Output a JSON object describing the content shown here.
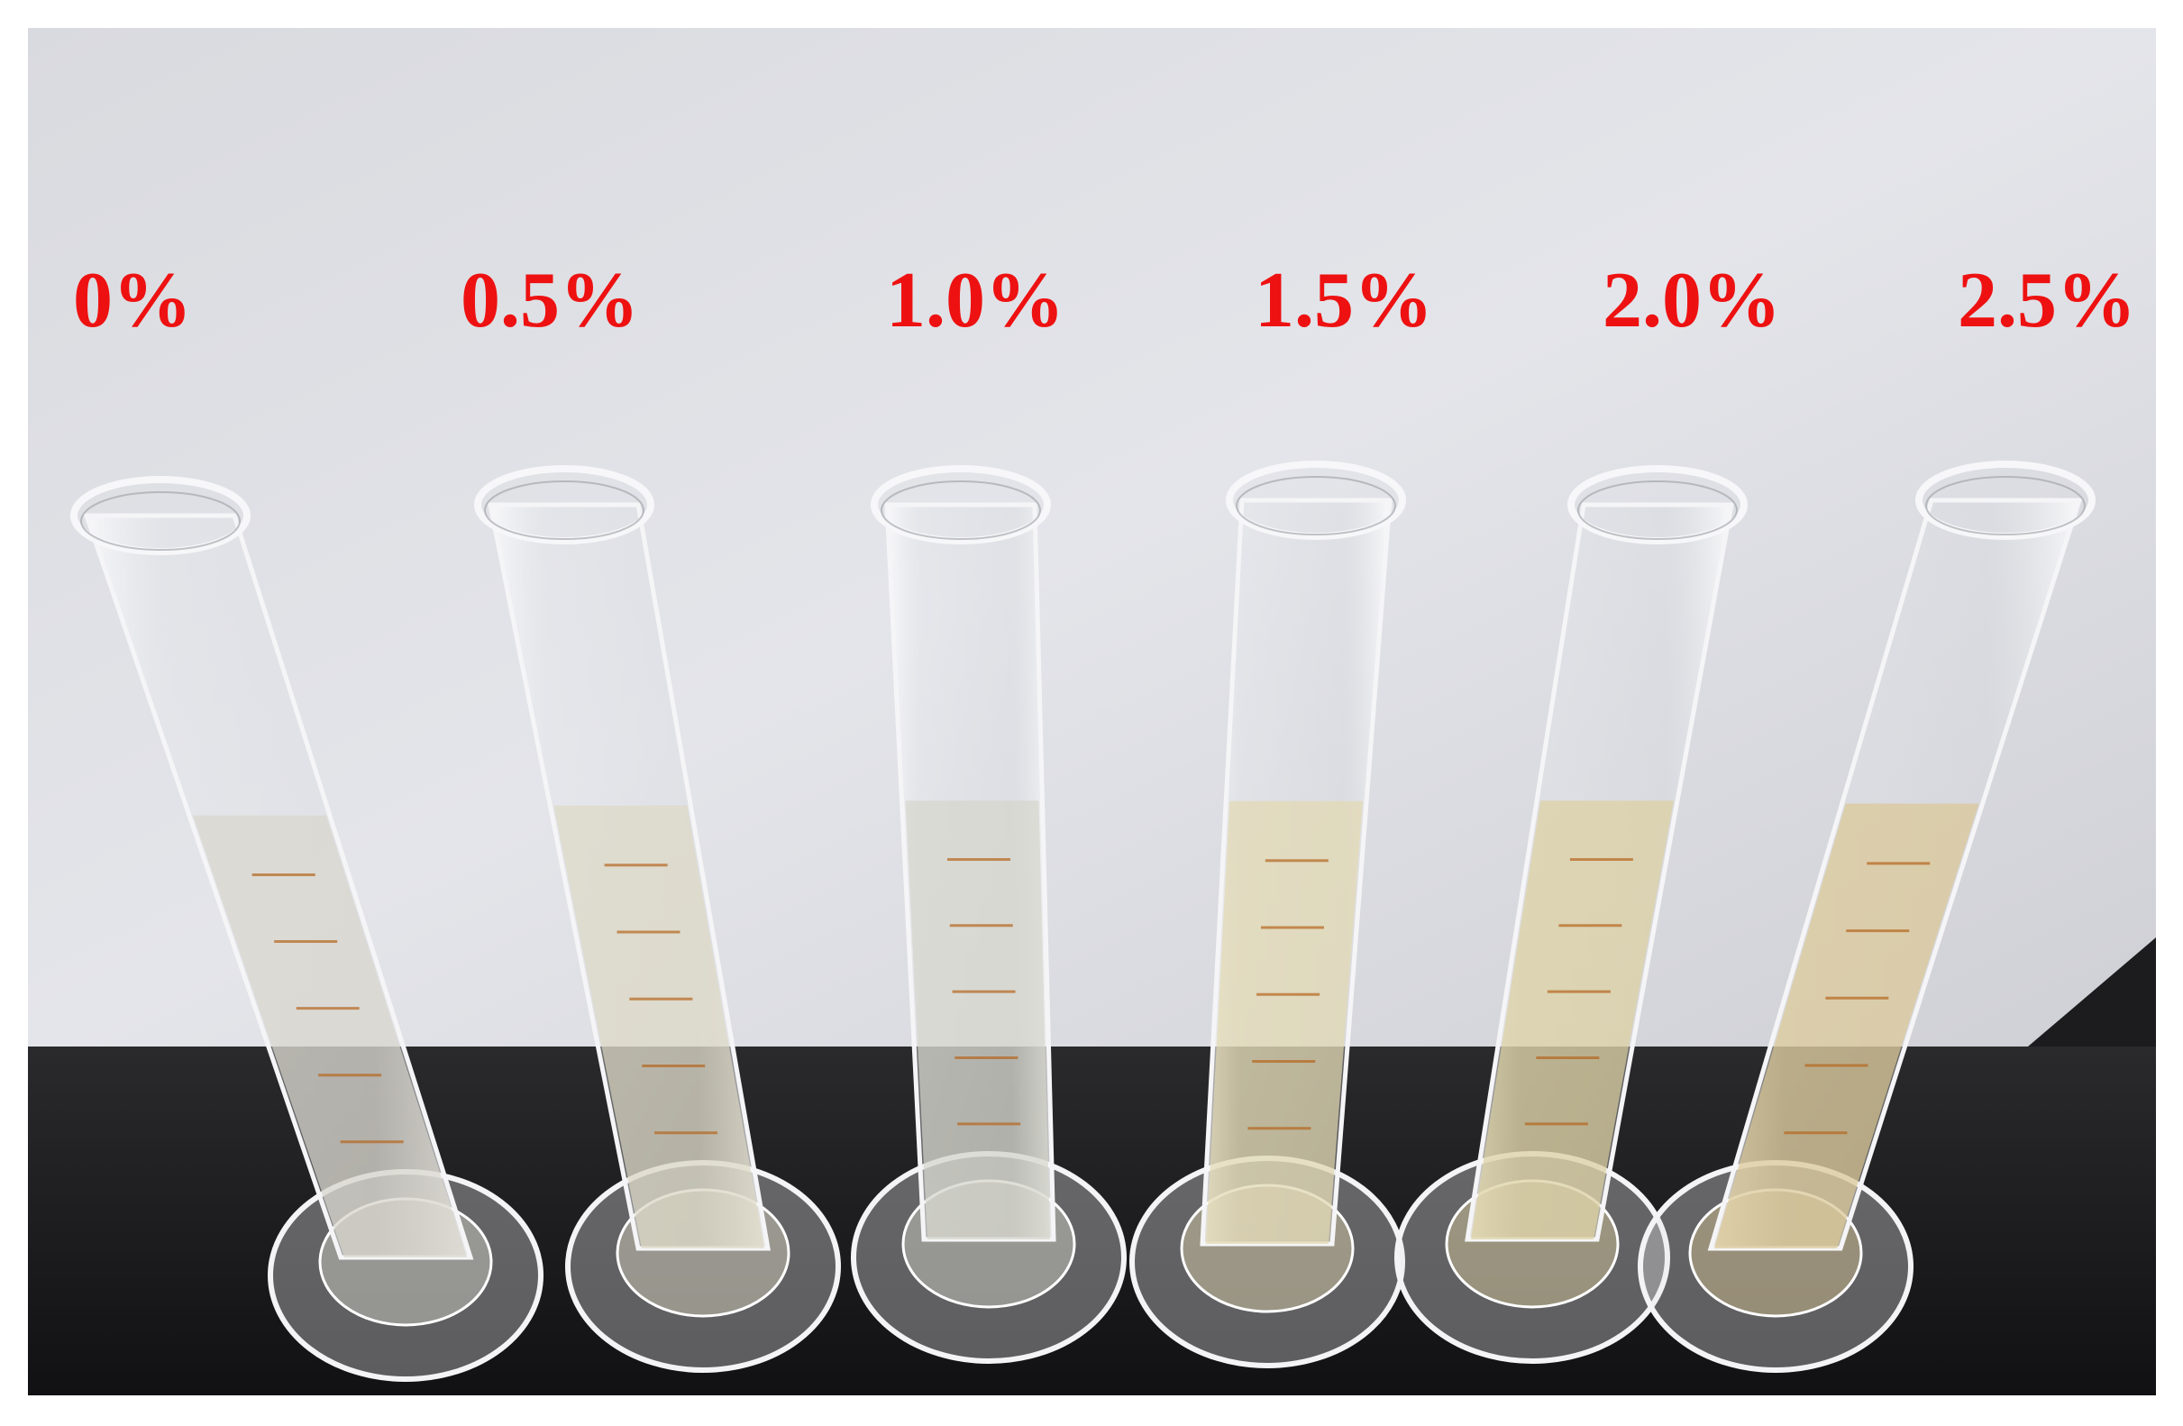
{
  "labels": [
    "0%",
    "0.5%",
    "1.0%",
    "1.5%",
    "2.0%",
    "2.5%"
  ]
}
